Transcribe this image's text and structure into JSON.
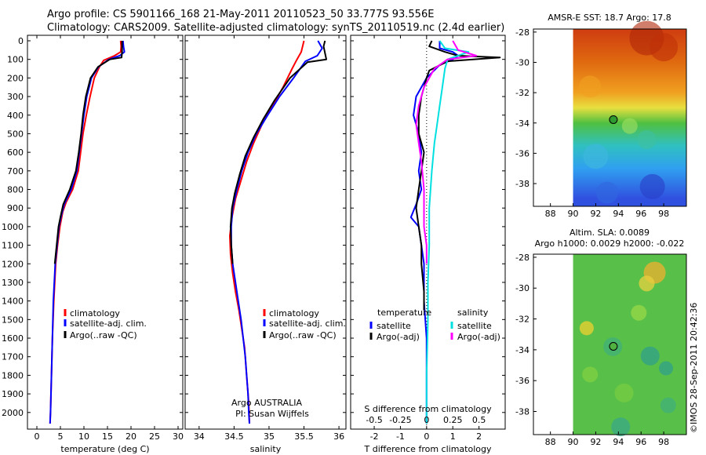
{
  "title_line1": "Argo profile: CS 5901166_168 21-May-2011 20110523_50 33.777S 93.556E",
  "title_line2": "Climatology: CARS2009. Satellite-adjusted climatology: synTS_20110519.nc (2.4d earlier)",
  "colors": {
    "climatology": "#ff0000",
    "satellite": "#0000ff",
    "argo": "#000000",
    "sat_salinity": "#00e0e0",
    "argo_salinity": "#ff00ff"
  },
  "chart_data": [
    {
      "type": "line",
      "id": "temperature",
      "xlabel": "temperature (deg C)",
      "ylabel": "",
      "xlim": [
        -2,
        31
      ],
      "ylim": [
        2080,
        0
      ],
      "xticks": [
        "0",
        "5",
        "10",
        "15",
        "20",
        "25",
        "30"
      ],
      "yticks": [
        "0",
        "100",
        "200",
        "300",
        "400",
        "500",
        "600",
        "700",
        "800",
        "900",
        "1000",
        "1100",
        "1200",
        "1300",
        "1400",
        "1500",
        "1600",
        "1700",
        "1800",
        "1900",
        "2000"
      ],
      "legend": [
        "climatology",
        "satellite-adj. clim.",
        "Argo(..raw -QC)"
      ],
      "series": [
        {
          "name": "climatology",
          "points": [
            [
              17.8,
              0
            ],
            [
              17.9,
              30
            ],
            [
              17.8,
              60
            ],
            [
              16.5,
              80
            ],
            [
              14.2,
              105
            ],
            [
              13.3,
              140
            ],
            [
              12.2,
              200
            ],
            [
              11.3,
              300
            ],
            [
              10.5,
              400
            ],
            [
              9.8,
              500
            ],
            [
              9.3,
              600
            ],
            [
              8.8,
              700
            ],
            [
              7.6,
              800
            ],
            [
              6.2,
              870
            ],
            [
              5.5,
              920
            ],
            [
              4.9,
              1000
            ],
            [
              4.4,
              1100
            ],
            [
              4.0,
              1200
            ],
            [
              3.6,
              1400
            ],
            [
              3.3,
              1600
            ],
            [
              3.1,
              1800
            ],
            [
              2.9,
              2000
            ],
            [
              2.8,
              2060
            ]
          ]
        },
        {
          "name": "satellite-adj. clim.",
          "points": [
            [
              18.3,
              0
            ],
            [
              18.4,
              30
            ],
            [
              18.6,
              60
            ],
            [
              17.6,
              80
            ],
            [
              15.3,
              100
            ],
            [
              13.1,
              140
            ],
            [
              11.6,
              200
            ],
            [
              10.6,
              300
            ],
            [
              10.0,
              400
            ],
            [
              9.5,
              500
            ],
            [
              9.0,
              600
            ],
            [
              8.5,
              700
            ],
            [
              7.3,
              800
            ],
            [
              5.8,
              880
            ],
            [
              5.2,
              940
            ],
            [
              4.7,
              1000
            ],
            [
              4.3,
              1100
            ],
            [
              3.9,
              1200
            ],
            [
              3.5,
              1400
            ],
            [
              3.3,
              1600
            ],
            [
              3.1,
              1800
            ],
            [
              2.9,
              2000
            ],
            [
              2.8,
              2060
            ]
          ]
        },
        {
          "name": "Argo(..raw -QC)",
          "points": [
            [
              18.1,
              0
            ],
            [
              18.1,
              60
            ],
            [
              18.0,
              90
            ],
            [
              15.5,
              100
            ],
            [
              13.0,
              140
            ],
            [
              11.4,
              200
            ],
            [
              10.4,
              300
            ],
            [
              9.8,
              400
            ],
            [
              9.4,
              500
            ],
            [
              8.9,
              600
            ],
            [
              8.3,
              700
            ],
            [
              7.0,
              800
            ],
            [
              5.6,
              880
            ],
            [
              5.0,
              950
            ],
            [
              4.6,
              1000
            ],
            [
              4.2,
              1100
            ],
            [
              3.8,
              1200
            ]
          ]
        }
      ]
    },
    {
      "type": "line",
      "id": "salinity",
      "xlabel": "salinity",
      "ylabel": "",
      "xlim": [
        33.8,
        36.1
      ],
      "ylim": [
        2080,
        0
      ],
      "xticks": [
        "34",
        "34.5",
        "35",
        "35.5",
        "36"
      ],
      "legend": [
        "climatology",
        "satellite-adj. clim.",
        "Argo(..raw -QC)"
      ],
      "annotation": [
        "Argo AUSTRALIA",
        "PI: Susan Wijffels"
      ],
      "series": [
        {
          "name": "climatology",
          "points": [
            [
              35.5,
              0
            ],
            [
              35.46,
              60
            ],
            [
              35.4,
              100
            ],
            [
              35.33,
              150
            ],
            [
              35.2,
              250
            ],
            [
              35.05,
              350
            ],
            [
              34.9,
              450
            ],
            [
              34.78,
              550
            ],
            [
              34.68,
              650
            ],
            [
              34.6,
              750
            ],
            [
              34.52,
              850
            ],
            [
              34.47,
              950
            ],
            [
              34.44,
              1050
            ],
            [
              34.45,
              1150
            ],
            [
              34.48,
              1250
            ],
            [
              34.52,
              1350
            ],
            [
              34.57,
              1450
            ],
            [
              34.61,
              1550
            ],
            [
              34.65,
              1650
            ],
            [
              34.67,
              1750
            ],
            [
              34.69,
              1850
            ],
            [
              34.71,
              1950
            ],
            [
              34.72,
              2060
            ]
          ]
        },
        {
          "name": "satellite-adj. clim.",
          "points": [
            [
              35.7,
              0
            ],
            [
              35.76,
              40
            ],
            [
              35.69,
              80
            ],
            [
              35.52,
              110
            ],
            [
              35.35,
              200
            ],
            [
              35.15,
              300
            ],
            [
              34.98,
              400
            ],
            [
              34.82,
              500
            ],
            [
              34.7,
              600
            ],
            [
              34.61,
              700
            ],
            [
              34.54,
              800
            ],
            [
              34.48,
              900
            ],
            [
              34.46,
              1000
            ],
            [
              34.46,
              1100
            ],
            [
              34.48,
              1200
            ],
            [
              34.52,
              1300
            ],
            [
              34.56,
              1400
            ],
            [
              34.6,
              1500
            ],
            [
              34.63,
              1600
            ],
            [
              34.66,
              1700
            ],
            [
              34.68,
              1800
            ],
            [
              34.7,
              1900
            ],
            [
              34.71,
              2000
            ],
            [
              34.72,
              2060
            ]
          ]
        },
        {
          "name": "Argo(..raw -QC)",
          "points": [
            [
              35.8,
              0
            ],
            [
              35.78,
              30
            ],
            [
              35.82,
              100
            ],
            [
              35.55,
              115
            ],
            [
              35.3,
              200
            ],
            [
              35.08,
              320
            ],
            [
              34.92,
              420
            ],
            [
              34.78,
              520
            ],
            [
              34.66,
              620
            ],
            [
              34.58,
              720
            ],
            [
              34.51,
              820
            ],
            [
              34.47,
              900
            ],
            [
              34.45,
              1000
            ],
            [
              34.46,
              1100
            ],
            [
              34.48,
              1200
            ]
          ]
        }
      ]
    },
    {
      "type": "line",
      "id": "difference",
      "xlabel": "T difference from climatology",
      "x2label": "S difference from climatology",
      "xlim": [
        -2.9,
        3.0
      ],
      "ylim": [
        2080,
        0
      ],
      "xticks": [
        "-2",
        "-1",
        "0",
        "1",
        "2"
      ],
      "x2ticks": [
        "-0.5",
        "-0.25",
        "0",
        "0.25",
        "0.5"
      ],
      "legend_groups": [
        {
          "title": "temperature",
          "items": [
            "satellite",
            "Argo(-adj)"
          ]
        },
        {
          "title": "salinity",
          "items": [
            "satellite",
            "Argo(-adj)"
          ]
        }
      ],
      "series": [
        {
          "name": "temperature satellite",
          "points": [
            [
              0.5,
              0
            ],
            [
              0.5,
              40
            ],
            [
              1.0,
              60
            ],
            [
              1.2,
              80
            ],
            [
              1.0,
              100
            ],
            [
              0.5,
              130
            ],
            [
              0.0,
              200
            ],
            [
              -0.4,
              300
            ],
            [
              -0.5,
              400
            ],
            [
              -0.3,
              500
            ],
            [
              -0.2,
              600
            ],
            [
              -0.3,
              700
            ],
            [
              -0.2,
              800
            ],
            [
              -0.4,
              880
            ],
            [
              -0.6,
              950
            ],
            [
              -0.3,
              1000
            ],
            [
              -0.2,
              1100
            ],
            [
              -0.1,
              1200
            ],
            [
              -0.1,
              1400
            ],
            [
              0.0,
              1600
            ],
            [
              0.0,
              1800
            ],
            [
              0.0,
              2060
            ]
          ]
        },
        {
          "name": "temperature Argo(-adj)",
          "points": [
            [
              0.2,
              0
            ],
            [
              0.1,
              30
            ],
            [
              0.7,
              60
            ],
            [
              1.2,
              80
            ],
            [
              2.8,
              90
            ],
            [
              0.8,
              110
            ],
            [
              0.1,
              160
            ],
            [
              0.0,
              200
            ],
            [
              -0.2,
              300
            ],
            [
              -0.3,
              400
            ],
            [
              -0.3,
              500
            ],
            [
              -0.1,
              600
            ],
            [
              -0.2,
              700
            ],
            [
              -0.3,
              800
            ],
            [
              -0.4,
              900
            ],
            [
              -0.3,
              1000
            ],
            [
              -0.2,
              1100
            ],
            [
              -0.2,
              1200
            ],
            [
              -0.1,
              1350
            ],
            [
              -0.1,
              1450
            ]
          ]
        },
        {
          "name": "salinity satellite",
          "points": [
            [
              0.5,
              0
            ],
            [
              0.7,
              40
            ],
            [
              1.6,
              60
            ],
            [
              0.8,
              100
            ],
            [
              0.7,
              150
            ],
            [
              0.6,
              250
            ],
            [
              0.5,
              350
            ],
            [
              0.4,
              450
            ],
            [
              0.3,
              550
            ],
            [
              0.2,
              700
            ],
            [
              0.1,
              900
            ],
            [
              0.1,
              1100
            ],
            [
              0.05,
              1300
            ],
            [
              0.05,
              1500
            ],
            [
              0.0,
              1800
            ],
            [
              0.0,
              2060
            ]
          ]
        },
        {
          "name": "salinity Argo(-adj)",
          "points": [
            [
              1.0,
              0
            ],
            [
              1.2,
              50
            ],
            [
              1.9,
              80
            ],
            [
              0.8,
              100
            ],
            [
              0.3,
              150
            ],
            [
              -0.1,
              250
            ],
            [
              -0.3,
              350
            ],
            [
              -0.4,
              450
            ],
            [
              -0.3,
              550
            ],
            [
              -0.2,
              650
            ],
            [
              -0.1,
              800
            ],
            [
              -0.1,
              900
            ],
            [
              -0.1,
              1000
            ],
            [
              0.0,
              1100
            ],
            [
              0.0,
              1200
            ]
          ]
        }
      ]
    },
    {
      "type": "heatmap",
      "id": "sst_map",
      "title": "AMSR-E SST: 18.7 Argo: 17.8",
      "xticks": [
        "88",
        "90",
        "92",
        "94",
        "96",
        "98"
      ],
      "yticks": [
        "-28",
        "-30",
        "-32",
        "-34",
        "-36",
        "-38"
      ],
      "xlim": [
        86.5,
        100
      ],
      "ylim": [
        -39.5,
        -27.8
      ],
      "marker": {
        "lon": 93.556,
        "lat": -33.777
      },
      "color_bands": [
        {
          "lat": -28,
          "color": "#d04010"
        },
        {
          "lat": -30,
          "color": "#e06a10"
        },
        {
          "lat": -32,
          "color": "#f0a020"
        },
        {
          "lat": -33,
          "color": "#e8e040"
        },
        {
          "lat": -34,
          "color": "#50c040"
        },
        {
          "lat": -35.5,
          "color": "#30c0c0"
        },
        {
          "lat": -37,
          "color": "#30a0f0"
        },
        {
          "lat": -39,
          "color": "#3050e0"
        }
      ]
    },
    {
      "type": "heatmap",
      "id": "sla_map",
      "title_line1": "Altim. SLA: 0.0089",
      "title_line2": "Argo h1000: 0.0029 h2000: -0.022",
      "xticks": [
        "88",
        "90",
        "92",
        "94",
        "96",
        "98"
      ],
      "yticks": [
        "-28",
        "-30",
        "-32",
        "-34",
        "-36",
        "-38"
      ],
      "xlim": [
        86.5,
        100
      ],
      "ylim": [
        -39.5,
        -27.8
      ],
      "marker": {
        "lon": 93.556,
        "lat": -33.777
      }
    }
  ],
  "footer": "©IMOS 28-Sep-2011 20:42:36"
}
